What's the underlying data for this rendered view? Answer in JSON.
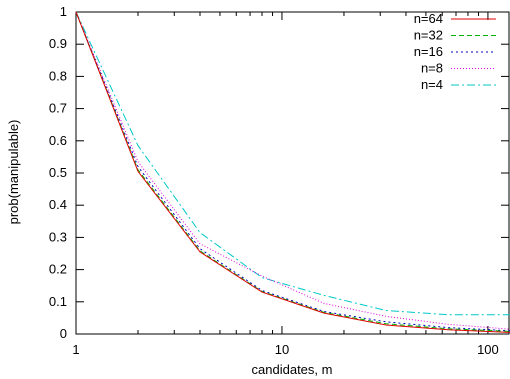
{
  "chart_data": {
    "type": "line",
    "xlabel": "candidates, m",
    "ylabel": "prob(manipulable)",
    "xscale": "log",
    "xlim": [
      1,
      128
    ],
    "ylim": [
      0,
      1
    ],
    "x_major_ticks": [
      1,
      10,
      100
    ],
    "x_tick_labels": [
      "1",
      "10",
      "100"
    ],
    "y_ticks": [
      0,
      0.1,
      0.2,
      0.3,
      0.4,
      0.5,
      0.6,
      0.7,
      0.8,
      0.9,
      1
    ],
    "y_tick_labels": [
      "0",
      "0.1",
      "0.2",
      "0.3",
      "0.4",
      "0.5",
      "0.6",
      "0.7",
      "0.8",
      "0.9",
      "1"
    ],
    "grid": false,
    "legend_position": "top-right",
    "x": [
      1,
      2,
      4,
      8,
      16,
      32,
      64,
      128
    ],
    "series": [
      {
        "name": "n=64",
        "color": "#e00000",
        "dash": "solid",
        "values": [
          1.0,
          0.505,
          0.255,
          0.13,
          0.065,
          0.028,
          0.013,
          0.005
        ]
      },
      {
        "name": "n=32",
        "color": "#00b000",
        "dash": "5,3",
        "values": [
          1.0,
          0.51,
          0.258,
          0.132,
          0.067,
          0.032,
          0.016,
          0.008
        ]
      },
      {
        "name": "n=16",
        "color": "#0000c0",
        "dash": "2,3",
        "values": [
          1.0,
          0.52,
          0.265,
          0.135,
          0.07,
          0.038,
          0.02,
          0.01
        ]
      },
      {
        "name": "n=8",
        "color": "#e000e0",
        "dash": "1,2",
        "values": [
          1.0,
          0.535,
          0.28,
          0.18,
          0.095,
          0.055,
          0.03,
          0.015
        ]
      },
      {
        "name": "n=4",
        "color": "#00c8c8",
        "dash": "8,3,2,3",
        "values": [
          1.0,
          0.585,
          0.315,
          0.175,
          0.12,
          0.073,
          0.06,
          0.06
        ]
      }
    ]
  }
}
